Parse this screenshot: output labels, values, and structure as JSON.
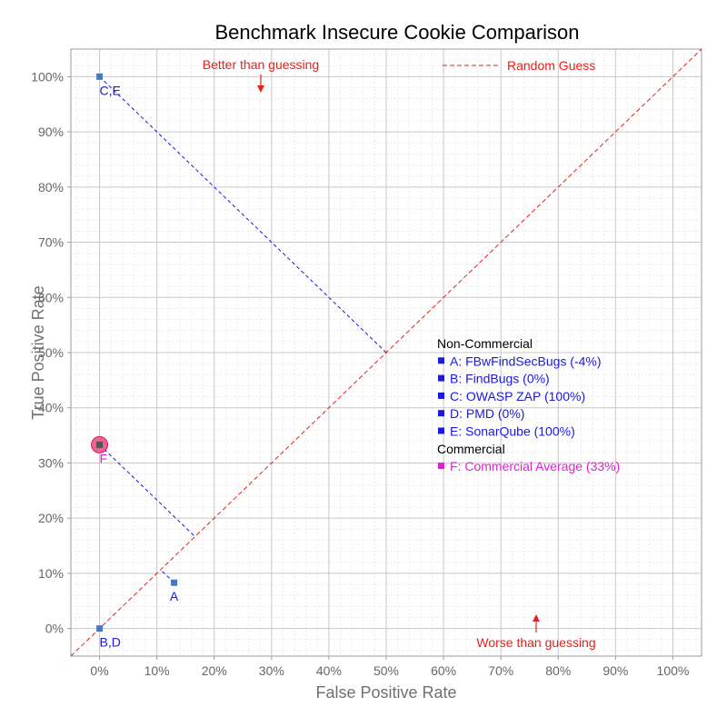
{
  "chart_data": {
    "type": "scatter",
    "title": "Benchmark Insecure Cookie Comparison",
    "xlabel": "False Positive Rate",
    "ylabel": "True Positive Rate",
    "xlim": [
      -0.05,
      1.05
    ],
    "ylim": [
      -0.05,
      1.05
    ],
    "x_ticks": [
      {
        "v": 0.0,
        "label": "0%"
      },
      {
        "v": 0.1,
        "label": "10%"
      },
      {
        "v": 0.2,
        "label": "20%"
      },
      {
        "v": 0.3,
        "label": "30%"
      },
      {
        "v": 0.4,
        "label": "40%"
      },
      {
        "v": 0.5,
        "label": "50%"
      },
      {
        "v": 0.6,
        "label": "60%"
      },
      {
        "v": 0.7,
        "label": "70%"
      },
      {
        "v": 0.8,
        "label": "80%"
      },
      {
        "v": 0.9,
        "label": "90%"
      },
      {
        "v": 1.0,
        "label": "100%"
      }
    ],
    "y_ticks": [
      {
        "v": 0.0,
        "label": "0%"
      },
      {
        "v": 0.1,
        "label": "10%"
      },
      {
        "v": 0.2,
        "label": "20%"
      },
      {
        "v": 0.3,
        "label": "30%"
      },
      {
        "v": 0.4,
        "label": "40%"
      },
      {
        "v": 0.5,
        "label": "50%"
      },
      {
        "v": 0.6,
        "label": "60%"
      },
      {
        "v": 0.7,
        "label": "70%"
      },
      {
        "v": 0.8,
        "label": "80%"
      },
      {
        "v": 0.9,
        "label": "90%"
      },
      {
        "v": 1.0,
        "label": "100%"
      }
    ],
    "grid": true,
    "random_guess_label": "Random Guess",
    "better_label": "Better than guessing",
    "worse_label": "Worse than guessing",
    "points": [
      {
        "label": "C,E",
        "x": 0.0,
        "y": 1.0,
        "group": "Non-Commercial"
      },
      {
        "label": "A",
        "x": 0.13,
        "y": 0.083,
        "group": "Non-Commercial"
      },
      {
        "label": "B,D",
        "x": 0.0,
        "y": 0.0,
        "group": "Non-Commercial"
      },
      {
        "label": "F",
        "x": 0.0,
        "y": 0.333,
        "group": "Commercial"
      }
    ],
    "legend": {
      "sections": [
        {
          "heading": "Non-Commercial",
          "items": [
            "A: FBwFindSecBugs (-4%)",
            "B: FindBugs (0%)",
            "C: OWASP ZAP (100%)",
            "D: PMD (0%)",
            "E: SonarQube (100%)"
          ]
        },
        {
          "heading": "Commercial",
          "items": [
            "F: Commercial Average (33%)"
          ]
        }
      ]
    },
    "colors": {
      "noncommercial": "#1a1adb",
      "commercial": "#e020d0",
      "guess": "#e8201a",
      "marker": "#4a78b8",
      "commercial_halo": "#f06090"
    }
  }
}
